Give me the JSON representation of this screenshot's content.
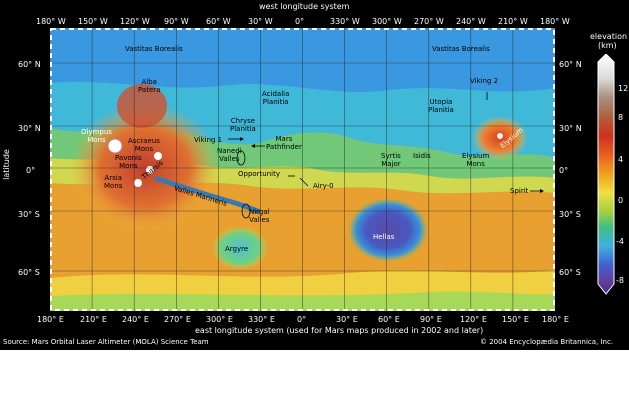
{
  "top_axis": {
    "title": "west longitude system",
    "ticks": [
      "180° W",
      "150° W",
      "120° W",
      "90° W",
      "60° W",
      "30° W",
      "0°",
      "330° W",
      "300° W",
      "270° W",
      "240° W",
      "210° W",
      "180° W"
    ]
  },
  "bottom_axis": {
    "title": "east longitude system (used for Mars maps produced in 2002 and later)",
    "ticks": [
      "180° E",
      "210° E",
      "240° E",
      "270° E",
      "300° E",
      "330° E",
      "0°",
      "30° E",
      "60° E",
      "90° E",
      "120° E",
      "150° E",
      "180° E"
    ]
  },
  "left_axis": {
    "title": "latitude",
    "ticks": [
      "60° N",
      "30° N",
      "0°",
      "30° S",
      "60° S"
    ]
  },
  "right_axis": {
    "ticks": [
      "60° N",
      "30° N",
      "0°",
      "30° S",
      "60° S"
    ]
  },
  "legend": {
    "title_line1": "elevation",
    "title_line2": "(km)",
    "ticks": [
      "12",
      "8",
      "4",
      "0",
      "-4",
      "-8"
    ],
    "colors": [
      "#ffffff",
      "#dcdcdc",
      "#a89080",
      "#b06040",
      "#d03020",
      "#e86020",
      "#f0a020",
      "#f0e040",
      "#a0d040",
      "#40c080",
      "#40b0e0",
      "#4060d0",
      "#6040a0",
      "#503080"
    ]
  },
  "features": [
    {
      "name": "Vastitas Borealis"
    },
    {
      "name": "Vastitas Borealis"
    },
    {
      "name": "Alba\nPatera"
    },
    {
      "name": "Acidalia\nPlanitia"
    },
    {
      "name": "Viking 2"
    },
    {
      "name": "Utopia\nPlanitia"
    },
    {
      "name": "Chryse\nPlanitia"
    },
    {
      "name": "Viking 1"
    },
    {
      "name": "Mars\nPathfinder"
    },
    {
      "name": "Olympus\nMons"
    },
    {
      "name": "Ascraeus\nMons"
    },
    {
      "name": "Pavonis\nMons"
    },
    {
      "name": "Arsia\nMons"
    },
    {
      "name": "Tharsis"
    },
    {
      "name": "Nanedi\nValles"
    },
    {
      "name": "Opportunity"
    },
    {
      "name": "Airy-0"
    },
    {
      "name": "Syrtis\nMajor"
    },
    {
      "name": "Isidis"
    },
    {
      "name": "Elysium\nMons"
    },
    {
      "name": "Elysium"
    },
    {
      "name": "Spirit"
    },
    {
      "name": "Valles Marineris"
    },
    {
      "name": "Nirgal\nValles"
    },
    {
      "name": "Argyre"
    },
    {
      "name": "Hellas"
    }
  ],
  "source": "Source: Mars Orbital Laser Altimeter (MOLA) Science Team",
  "copyright": "© 2004 Encyclopædia Britannica, Inc."
}
